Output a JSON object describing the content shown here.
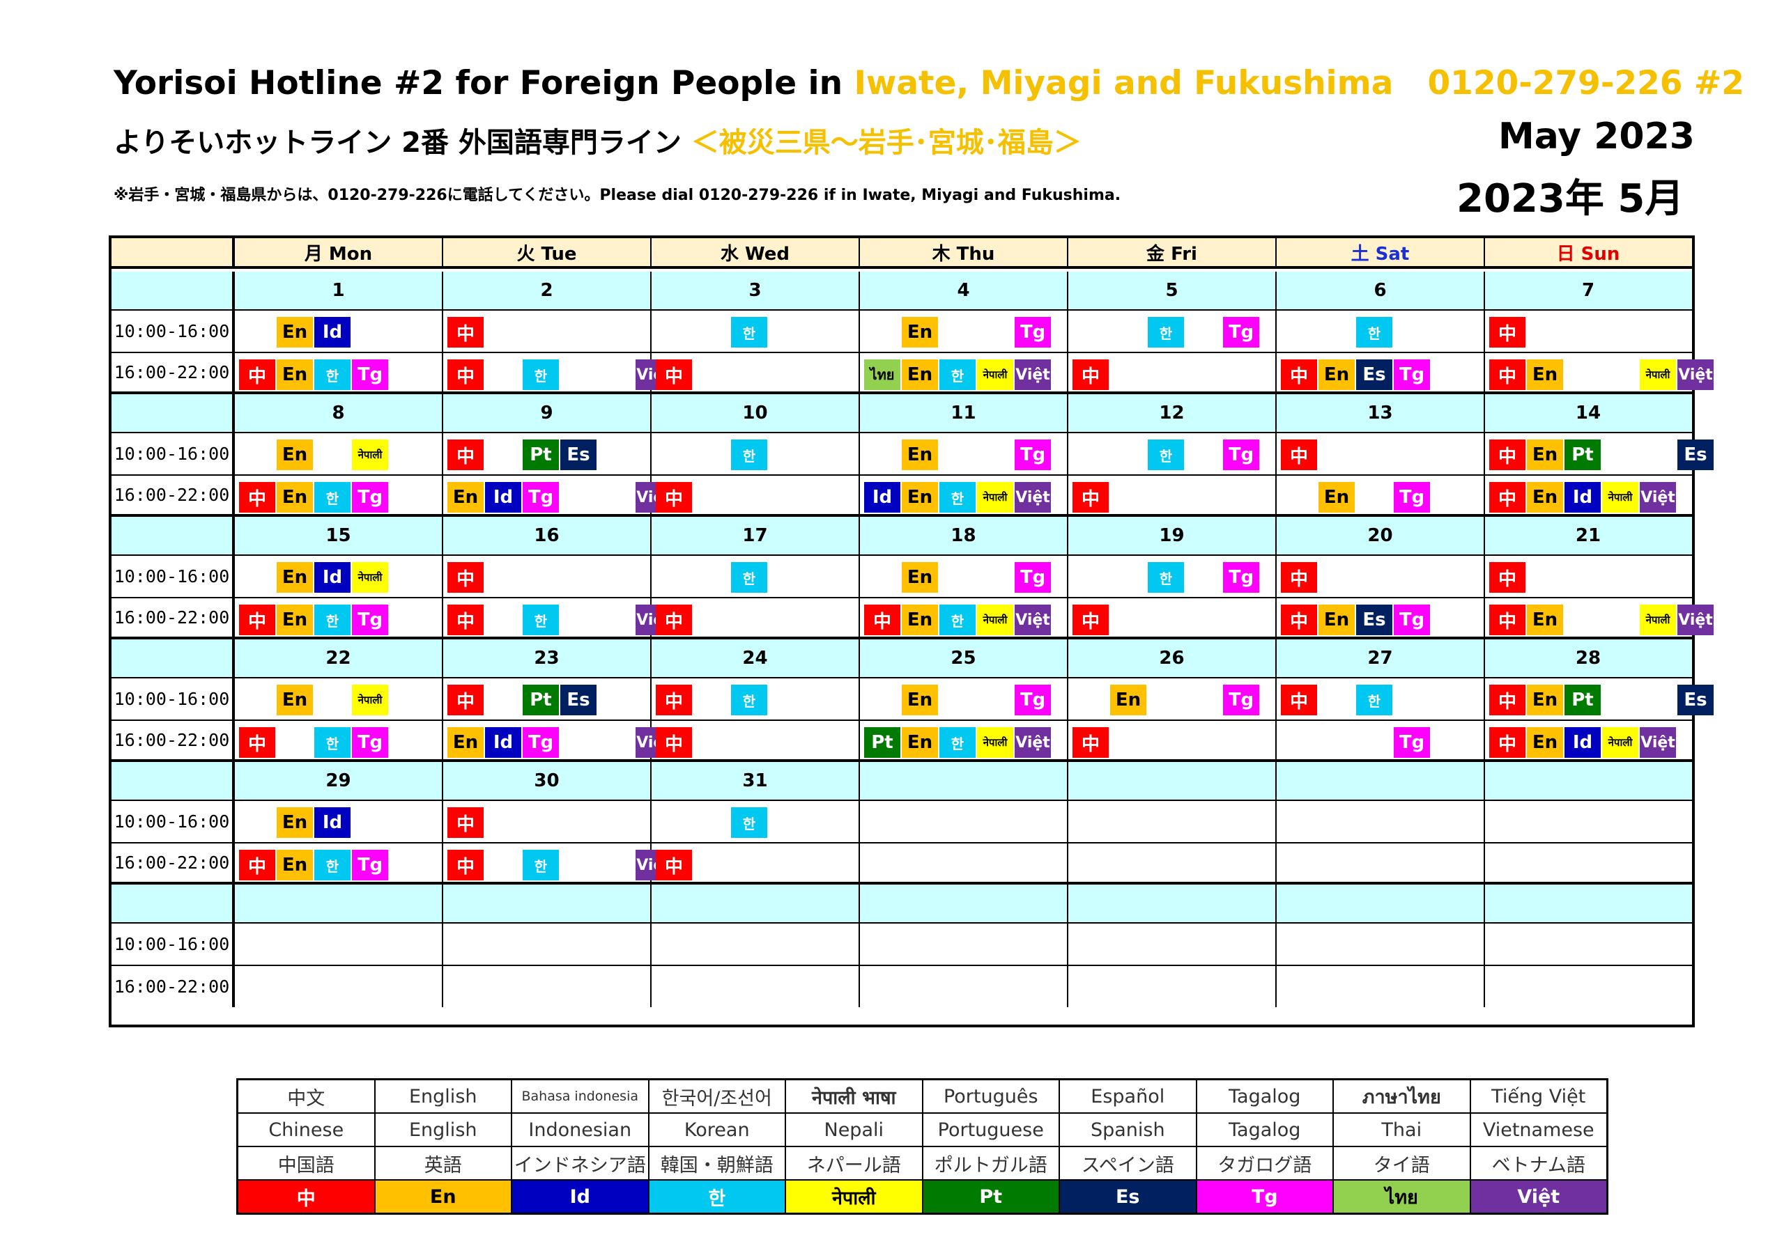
{
  "header": {
    "title_en_prefix": "Yorisoi Hotline #2 for Foreign People  in ",
    "title_en_region": "Iwate, Miyagi and Fukushima",
    "title_en_phone": "0120-279-226 #2",
    "title_ja_prefix": "よりそいホットライン  2番 外国語専門ライン  ",
    "title_ja_region": "＜被災三県～岩手･宮城･福島＞",
    "notice": "※岩手・宮城・福島県からは、0120-279-226に電話してください。Please dial 0120-279-226 if in Iwate, Miyagi and Fukushima.",
    "month_en": "May  2023",
    "month_ja": "2023年 5月"
  },
  "days": [
    "月 Mon",
    "火 Tue",
    "水 Wed",
    "木 Thu",
    "金 Fri",
    "土 Sat",
    "日 Sun"
  ],
  "slots": [
    "10:00-16:00",
    "16:00-22:00"
  ],
  "languages": {
    "zh": "中",
    "en": "En",
    "id": "Id",
    "ko": "한",
    "ne": "नेपाली",
    "pt": "Pt",
    "es": "Es",
    "tg": "Tg",
    "th": "ไทย",
    "vi": "Việt"
  },
  "weeks": [
    {
      "dates": [
        "1",
        "2",
        "3",
        "4",
        "5",
        "6",
        "7"
      ],
      "am": [
        [
          "en",
          "id"
        ],
        [
          "zh"
        ],
        [
          "ko"
        ],
        [
          "en",
          "tg"
        ],
        [
          "ko",
          "tg"
        ],
        [
          "ko"
        ],
        [
          "zh"
        ]
      ],
      "pm": [
        [
          "zh",
          "en",
          "ko",
          "tg"
        ],
        [
          "zh",
          "ko",
          "vi"
        ],
        [
          "zh"
        ],
        [
          "th",
          "en",
          "ko",
          "ne",
          "vi"
        ],
        [
          "zh"
        ],
        [
          "zh",
          "en",
          "es",
          "tg"
        ],
        [
          "zh",
          "en",
          "ne",
          "vi"
        ]
      ]
    },
    {
      "dates": [
        "8",
        "9",
        "10",
        "11",
        "12",
        "13",
        "14"
      ],
      "am": [
        [
          "en",
          "ne"
        ],
        [
          "zh",
          "pt",
          "es"
        ],
        [
          "ko"
        ],
        [
          "en",
          "tg"
        ],
        [
          "ko",
          "tg"
        ],
        [
          "zh"
        ],
        [
          "zh",
          "en",
          "pt",
          "es"
        ]
      ],
      "pm": [
        [
          "zh",
          "en",
          "ko",
          "tg"
        ],
        [
          "en",
          "id",
          "tg",
          "vi"
        ],
        [
          "zh"
        ],
        [
          "id",
          "en",
          "ko",
          "ne",
          "vi"
        ],
        [
          "zh"
        ],
        [
          "en",
          "tg"
        ],
        [
          "zh",
          "en",
          "id",
          "ne",
          "vi"
        ]
      ]
    },
    {
      "dates": [
        "15",
        "16",
        "17",
        "18",
        "19",
        "20",
        "21"
      ],
      "am": [
        [
          "en",
          "id",
          "ne"
        ],
        [
          "zh"
        ],
        [
          "ko"
        ],
        [
          "en",
          "tg"
        ],
        [
          "ko",
          "tg"
        ],
        [
          "zh"
        ],
        [
          "zh"
        ]
      ],
      "pm": [
        [
          "zh",
          "en",
          "ko",
          "tg"
        ],
        [
          "zh",
          "ko",
          "vi"
        ],
        [
          "zh"
        ],
        [
          "zh",
          "en",
          "ko",
          "ne",
          "vi"
        ],
        [
          "zh"
        ],
        [
          "zh",
          "en",
          "es",
          "tg"
        ],
        [
          "zh",
          "en",
          "ne",
          "vi"
        ]
      ]
    },
    {
      "dates": [
        "22",
        "23",
        "24",
        "25",
        "26",
        "27",
        "28"
      ],
      "am": [
        [
          "en",
          "ne"
        ],
        [
          "zh",
          "pt",
          "es"
        ],
        [
          "zh",
          "ko"
        ],
        [
          "en",
          "tg"
        ],
        [
          "en",
          "tg"
        ],
        [
          "zh",
          "ko"
        ],
        [
          "zh",
          "en",
          "pt",
          "es"
        ]
      ],
      "pm": [
        [
          "zh",
          "ko",
          "tg"
        ],
        [
          "en",
          "id",
          "tg",
          "vi"
        ],
        [
          "zh"
        ],
        [
          "pt",
          "en",
          "ko",
          "ne",
          "vi"
        ],
        [
          "zh"
        ],
        [
          "tg"
        ],
        [
          "zh",
          "en",
          "id",
          "ne",
          "vi"
        ]
      ]
    },
    {
      "dates": [
        "29",
        "30",
        "31",
        "",
        "",
        "",
        ""
      ],
      "am": [
        [
          "en",
          "id"
        ],
        [
          "zh"
        ],
        [
          "ko"
        ],
        [],
        [],
        [],
        []
      ],
      "pm": [
        [
          "zh",
          "en",
          "ko",
          "tg"
        ],
        [
          "zh",
          "ko",
          "vi"
        ],
        [
          "zh"
        ],
        [],
        [],
        [],
        []
      ]
    },
    {
      "dates": [
        "",
        "",
        "",
        "",
        "",
        "",
        ""
      ],
      "am": [
        [],
        [],
        [],
        [],
        [],
        [],
        []
      ],
      "pm": [
        [],
        [],
        [],
        [],
        [],
        [],
        []
      ]
    }
  ],
  "legend": {
    "native": [
      "中文",
      "English",
      "Bahasa indonesia",
      "한국어/조선어",
      "नेपाली भाषा",
      "Português",
      "Español",
      "Tagalog",
      "ภาษาไทย",
      "Tiếng Việt"
    ],
    "english": [
      "Chinese",
      "English",
      "Indonesian",
      "Korean",
      "Nepali",
      "Portuguese",
      "Spanish",
      "Tagalog",
      "Thai",
      "Vietnamese"
    ],
    "japanese": [
      "中国語",
      "英語",
      "インドネシア語",
      "韓国・朝鮮語",
      "ネパール語",
      "ポルトガル語",
      "スペイン語",
      "タガログ語",
      "タイ語",
      "ベトナム語"
    ],
    "codes": [
      "中",
      "En",
      "Id",
      "한",
      "नेपाली",
      "Pt",
      "Es",
      "Tg",
      "ไทย",
      "Việt"
    ],
    "colors": [
      "#ff0000",
      "#ffc000",
      "#0000c0",
      "#00c8f0",
      "#ffff00",
      "#007a00",
      "#002060",
      "#ff00ff",
      "#92d050",
      "#7030a0"
    ]
  }
}
